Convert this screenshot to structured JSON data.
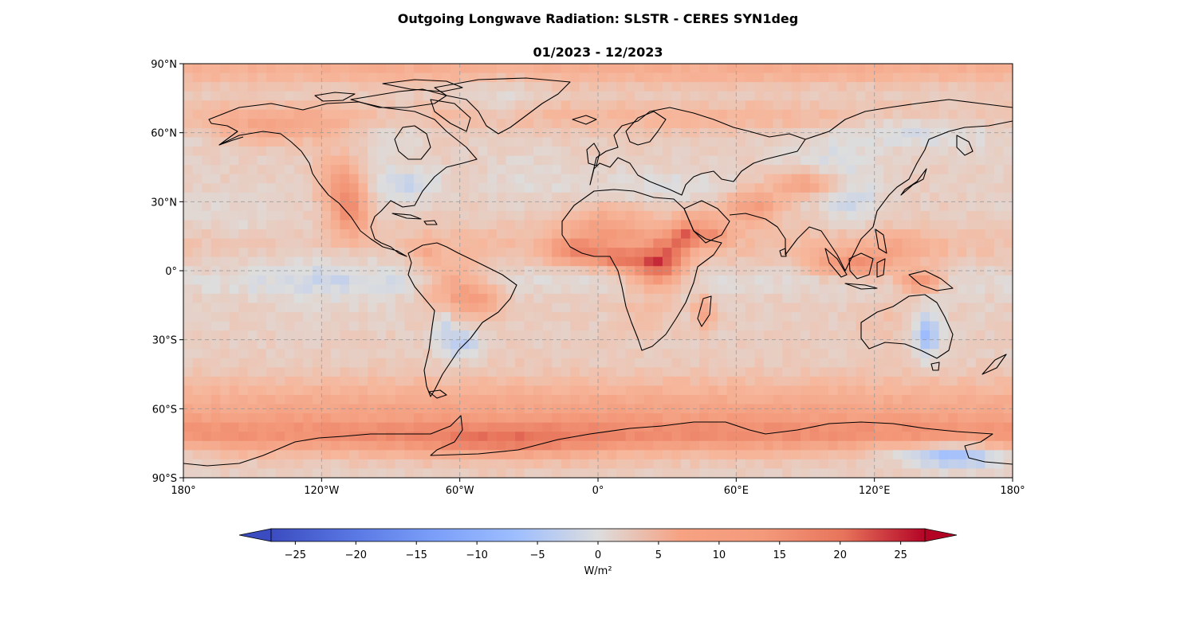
{
  "title": "Outgoing Longwave Radiation: SLSTR - CERES SYN1deg",
  "subtitle": "01/2023 - 12/2023",
  "colors": {
    "cold": "#3b4cc0",
    "neutral": "#dddddd",
    "warm": "#b40426",
    "coast": "#000000",
    "grid": "#9a9a9a"
  },
  "chart_data": {
    "type": "heatmap",
    "projection": "PlateCarree",
    "xlim": [
      -180,
      180
    ],
    "ylim": [
      -90,
      90
    ],
    "grid": true,
    "lon_ticks": [
      {
        "value": -180,
        "label": "180°"
      },
      {
        "value": -120,
        "label": "120°W"
      },
      {
        "value": -60,
        "label": "60°W"
      },
      {
        "value": 0,
        "label": "0°"
      },
      {
        "value": 60,
        "label": "60°E"
      },
      {
        "value": 120,
        "label": "120°E"
      },
      {
        "value": 180,
        "label": "180°"
      }
    ],
    "lat_ticks": [
      {
        "value": 90,
        "label": "90°N"
      },
      {
        "value": 60,
        "label": "60°N"
      },
      {
        "value": 30,
        "label": "30°N"
      },
      {
        "value": 0,
        "label": "0°"
      },
      {
        "value": -30,
        "label": "30°S"
      },
      {
        "value": -60,
        "label": "60°S"
      },
      {
        "value": -90,
        "label": "90°S"
      }
    ],
    "colorbar": {
      "colormap": "coolwarm",
      "vmin": -27,
      "vmax": 27,
      "extend": "both",
      "ticks": [
        -25,
        -20,
        -15,
        -10,
        -5,
        0,
        5,
        10,
        15,
        20,
        25
      ],
      "tick_labels": [
        "−25",
        "−20",
        "−15",
        "−10",
        "−5",
        "0",
        "5",
        "10",
        "15",
        "20",
        "25"
      ],
      "label": "W/m²"
    },
    "field_features": [
      {
        "lon": 0,
        "lat": 0,
        "sigma_lon": 400,
        "sigma_lat": 400,
        "value": 3
      },
      {
        "lon": 0,
        "lat": -62,
        "sigma_lon": 400,
        "sigma_lat": 10,
        "value": 8
      },
      {
        "lon": 0,
        "lat": -72,
        "sigma_lon": 400,
        "sigma_lat": 5,
        "value": 8
      },
      {
        "lon": -40,
        "lat": -76,
        "sigma_lon": 28,
        "sigma_lat": 5,
        "value": 6
      },
      {
        "lon": 0,
        "lat": 88,
        "sigma_lon": 400,
        "sigma_lat": 5,
        "value": 6
      },
      {
        "lon": 0,
        "lat": 67,
        "sigma_lon": 400,
        "sigma_lat": 5,
        "value": 4
      },
      {
        "lon": 0,
        "lat": 12,
        "sigma_lon": 400,
        "sigma_lat": 6,
        "value": 3
      },
      {
        "lon": 0,
        "lat": -5,
        "sigma_lon": 400,
        "sigma_lat": 4,
        "value": -2
      },
      {
        "lon": -115,
        "lat": 0,
        "sigma_lon": 25,
        "sigma_lat": 12,
        "value": -3
      },
      {
        "lon": -158,
        "lat": 20,
        "sigma_lon": 18,
        "sigma_lat": 10,
        "value": -2
      },
      {
        "lon": 25,
        "lat": 36,
        "sigma_lon": 25,
        "sigma_lat": 6,
        "value": -3
      },
      {
        "lon": 100,
        "lat": 47,
        "sigma_lon": 15,
        "sigma_lat": 8,
        "value": -3
      },
      {
        "lon": 110,
        "lat": 30,
        "sigma_lon": 10,
        "sigma_lat": 8,
        "value": -4
      },
      {
        "lon": 90,
        "lat": 38,
        "sigma_lon": 10,
        "sigma_lat": 4,
        "value": 10
      },
      {
        "lon": -30,
        "lat": 40,
        "sigma_lon": 15,
        "sigma_lat": 8,
        "value": -2
      },
      {
        "lon": 5,
        "lat": 18,
        "sigma_lon": 14,
        "sigma_lat": 8,
        "value": 8
      },
      {
        "lon": -10,
        "lat": 8,
        "sigma_lon": 8,
        "sigma_lat": 4,
        "value": 10
      },
      {
        "lon": 10,
        "lat": 5,
        "sigma_lon": 8,
        "sigma_lat": 3,
        "value": 12
      },
      {
        "lon": 25,
        "lat": 0,
        "sigma_lon": 8,
        "sigma_lat": 6,
        "value": 14
      },
      {
        "lon": 30,
        "lat": 8,
        "sigma_lon": 6,
        "sigma_lat": 6,
        "value": 10
      },
      {
        "lon": 38,
        "lat": 15,
        "sigma_lon": 4,
        "sigma_lat": 4,
        "value": 12
      },
      {
        "lon": 45,
        "lat": 22,
        "sigma_lon": 8,
        "sigma_lat": 5,
        "value": 6
      },
      {
        "lon": 50,
        "lat": 15,
        "sigma_lon": 5,
        "sigma_lat": 3,
        "value": 9
      },
      {
        "lon": 68,
        "lat": 28,
        "sigma_lon": 8,
        "sigma_lat": 5,
        "value": 10
      },
      {
        "lon": 20,
        "lat": -20,
        "sigma_lon": 8,
        "sigma_lat": 6,
        "value": 3
      },
      {
        "lon": 46,
        "lat": -18,
        "sigma_lon": 3,
        "sigma_lat": 5,
        "value": 8
      },
      {
        "lon": -63,
        "lat": -8,
        "sigma_lon": 8,
        "sigma_lat": 8,
        "value": 9
      },
      {
        "lon": -50,
        "lat": -12,
        "sigma_lon": 7,
        "sigma_lat": 5,
        "value": 7
      },
      {
        "lon": -58,
        "lat": -32,
        "sigma_lon": 6,
        "sigma_lat": 5,
        "value": -6
      },
      {
        "lon": -67,
        "lat": -24,
        "sigma_lon": 3,
        "sigma_lat": 8,
        "value": -5
      },
      {
        "lon": -75,
        "lat": 8,
        "sigma_lon": 4,
        "sigma_lat": 4,
        "value": 5
      },
      {
        "lon": -108,
        "lat": 26,
        "sigma_lon": 6,
        "sigma_lat": 8,
        "value": 12
      },
      {
        "lon": -112,
        "lat": 40,
        "sigma_lon": 7,
        "sigma_lat": 8,
        "value": 9
      },
      {
        "lon": -95,
        "lat": 38,
        "sigma_lon": 10,
        "sigma_lat": 6,
        "value": -3
      },
      {
        "lon": -78,
        "lat": 38,
        "sigma_lon": 8,
        "sigma_lat": 5,
        "value": -4
      },
      {
        "lon": -140,
        "lat": 62,
        "sigma_lon": 20,
        "sigma_lat": 5,
        "value": 6
      },
      {
        "lon": -88,
        "lat": 62,
        "sigma_lon": 12,
        "sigma_lat": 8,
        "value": -3
      },
      {
        "lon": -42,
        "lat": 75,
        "sigma_lon": 12,
        "sigma_lat": 10,
        "value": -3
      },
      {
        "lon": 150,
        "lat": 62,
        "sigma_lon": 25,
        "sigma_lat": 6,
        "value": -4
      },
      {
        "lon": 120,
        "lat": 62,
        "sigma_lon": 20,
        "sigma_lat": 5,
        "value": -2
      },
      {
        "lon": 115,
        "lat": 2,
        "sigma_lon": 8,
        "sigma_lat": 4,
        "value": 10
      },
      {
        "lon": 100,
        "lat": 3,
        "sigma_lon": 6,
        "sigma_lat": 4,
        "value": 8
      },
      {
        "lon": 140,
        "lat": -5,
        "sigma_lon": 6,
        "sigma_lat": 3,
        "value": 14
      },
      {
        "lon": 130,
        "lat": 8,
        "sigma_lon": 12,
        "sigma_lat": 6,
        "value": 5
      },
      {
        "lon": 143,
        "lat": -28,
        "sigma_lon": 4,
        "sigma_lat": 7,
        "value": -10
      },
      {
        "lon": 125,
        "lat": -22,
        "sigma_lon": 10,
        "sigma_lat": 6,
        "value": 2
      },
      {
        "lon": 155,
        "lat": -80,
        "sigma_lon": 15,
        "sigma_lat": 4,
        "value": -12
      },
      {
        "lon": 125,
        "lat": -78,
        "sigma_lon": 10,
        "sigma_lat": 3,
        "value": -4
      }
    ]
  }
}
